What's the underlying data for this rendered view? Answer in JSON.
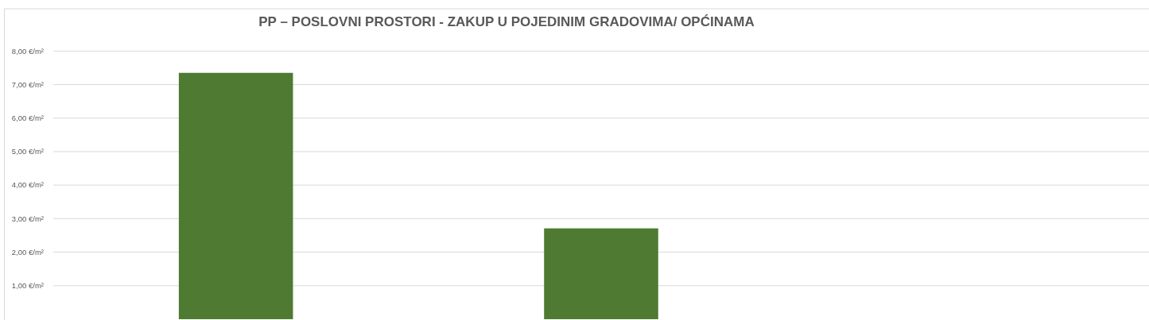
{
  "chart_data": {
    "type": "bar",
    "title": "PP – POSLOVNI PROSTORI - ZAKUP U POJEDINIM GRADOVIMA/ OPĆINAMA",
    "categories": [
      null,
      null,
      null
    ],
    "values": [
      7.35,
      2.71,
      null
    ],
    "color": "#4e7a31",
    "ylim": [
      0,
      8
    ],
    "yticks": [
      {
        "value": 1,
        "label": "1,00 €/m²"
      },
      {
        "value": 2,
        "label": "2,00 €/m²"
      },
      {
        "value": 3,
        "label": "3,00 €/m²"
      },
      {
        "value": 4,
        "label": "4,00 €/m²"
      },
      {
        "value": 5,
        "label": "5,00 €/m²"
      },
      {
        "value": 6,
        "label": "6,00 €/m²"
      },
      {
        "value": 7,
        "label": "7,00 €/m²"
      },
      {
        "value": 8,
        "label": "8,00 €/m²"
      }
    ],
    "grid": "y"
  }
}
